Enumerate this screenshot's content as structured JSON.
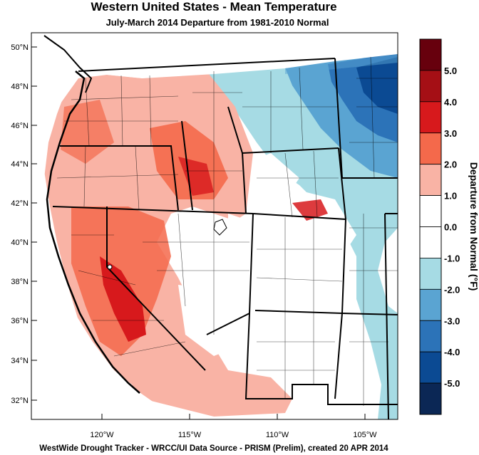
{
  "title": "Western United States - Mean Temperature",
  "subtitle": "July-March 2014  Departure from 1981-2010 Normal",
  "footer": "WestWide Drought Tracker - WRCC/UI  Data Source - PRISM (Prelim), created 20 APR 2014",
  "colorbar": {
    "title": "Departure from Normal (°F)",
    "tick_labels": [
      "5.0",
      "4.0",
      "3.0",
      "2.0",
      "1.0",
      "0.0",
      "-1.0",
      "-2.0",
      "-3.0",
      "-4.0",
      "-5.0"
    ],
    "colors": [
      "#67000d",
      "#a50f15",
      "#d7191c",
      "#f4694b",
      "#f9b3a5",
      "#ffffff",
      "#ffffff",
      "#a6dbe4",
      "#5aa4d2",
      "#2c73b8",
      "#0b4a93",
      "#0b2755"
    ]
  },
  "map": {
    "lat_labels": [
      "50°N",
      "48°N",
      "46°N",
      "44°N",
      "42°N",
      "40°N",
      "38°N",
      "36°N",
      "34°N",
      "32°N"
    ],
    "lon_labels": [
      "120°W",
      "115°W",
      "110°W",
      "105°W"
    ]
  }
}
